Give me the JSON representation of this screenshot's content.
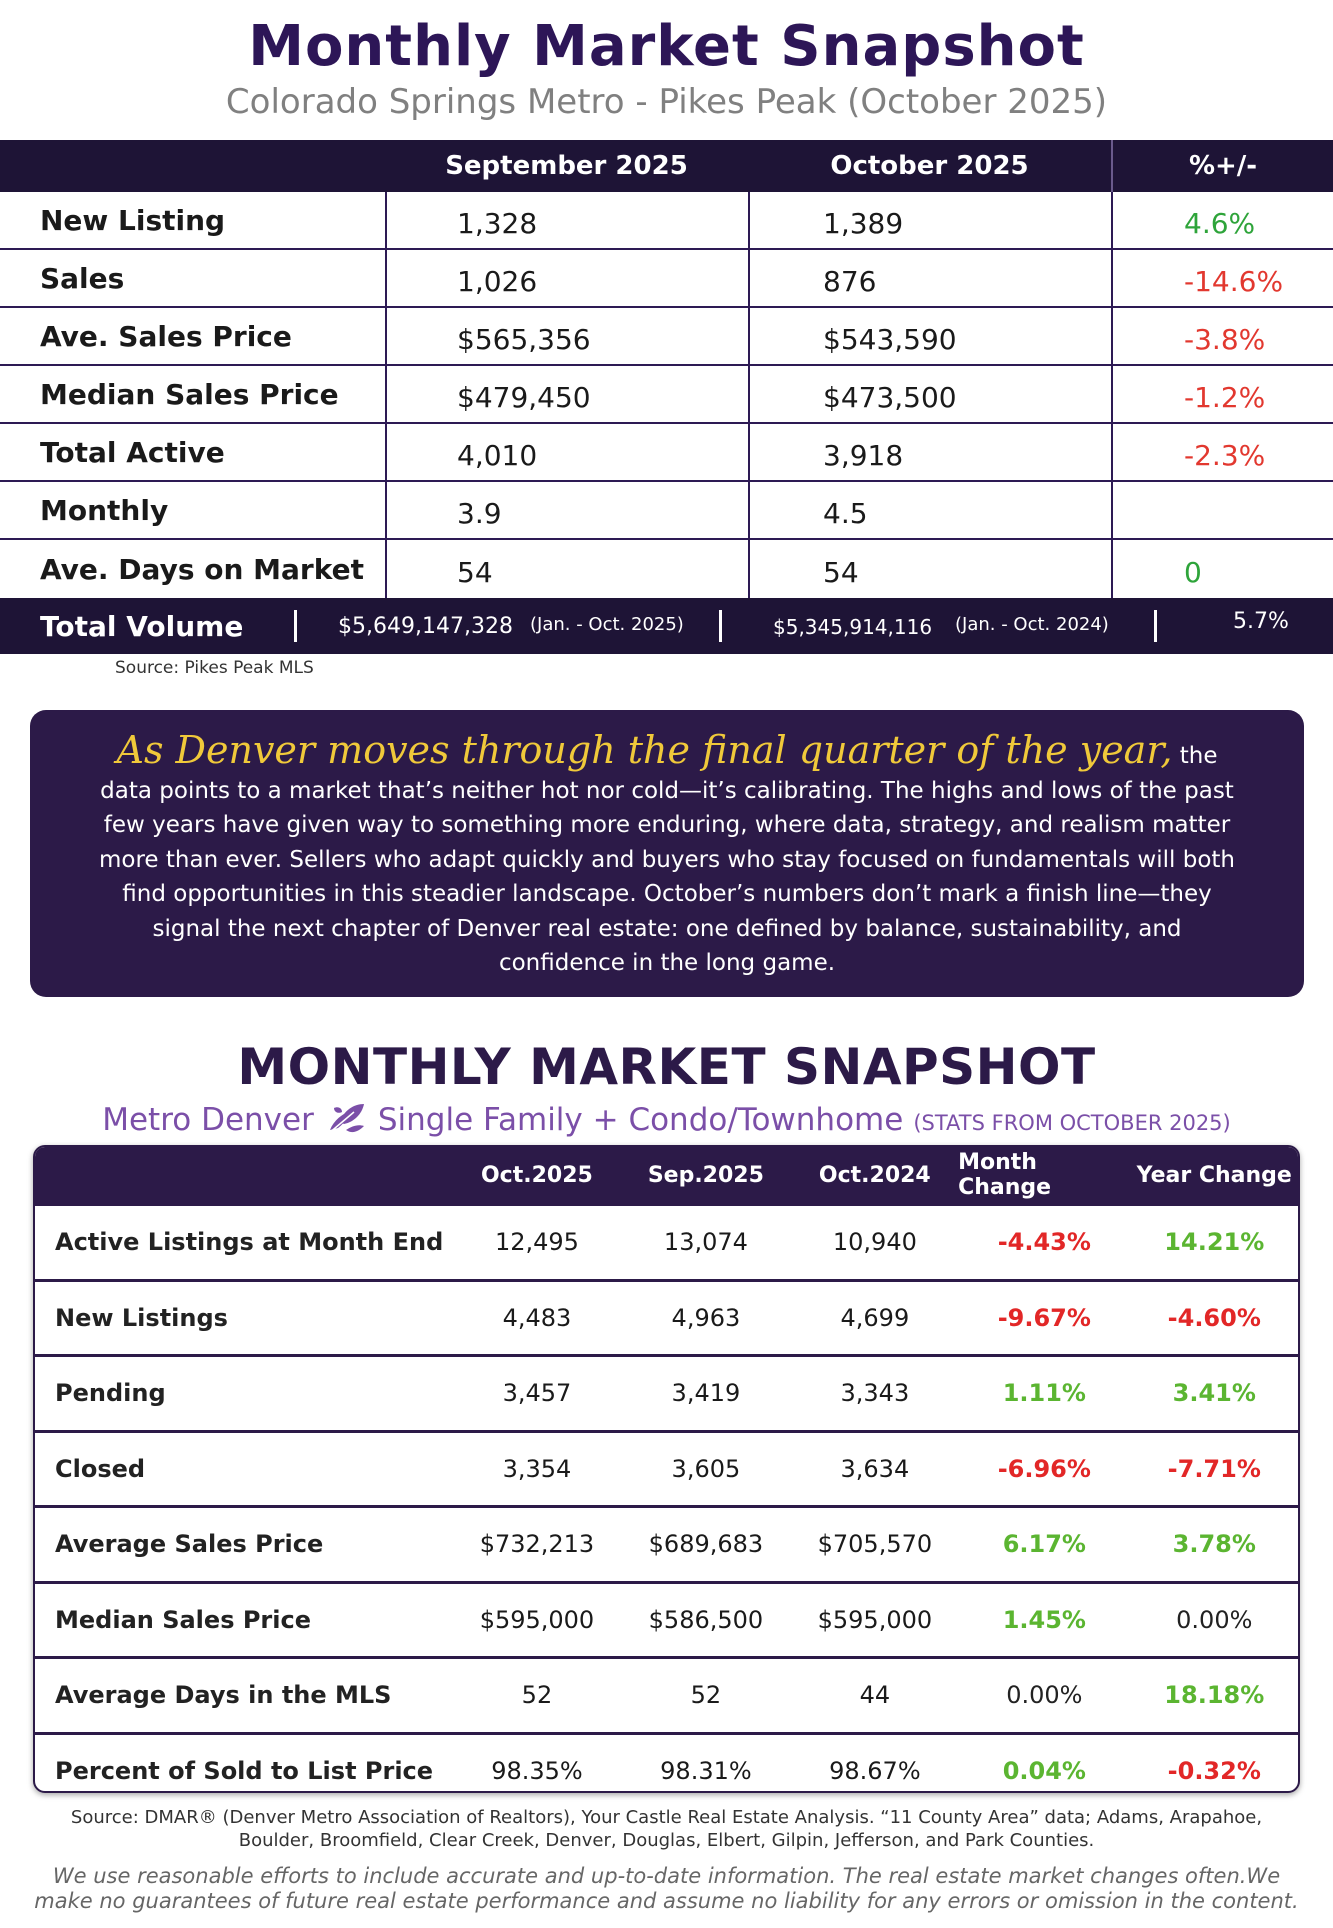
{
  "section1": {
    "title": "Monthly Market Snapshot",
    "subtitle": "Colorado Springs Metro - Pikes Peak (October 2025)",
    "columns": [
      "",
      "September 2025",
      "October 2025",
      "%+/-"
    ],
    "rows": [
      {
        "label": "New Listing",
        "sep": "1,328",
        "oct": "1,389",
        "change": "4.6%",
        "tone": "green"
      },
      {
        "label": "Sales",
        "sep": "1,026",
        "oct": "876",
        "change": "-14.6%",
        "tone": "red"
      },
      {
        "label": "Ave. Sales Price",
        "sep": "$565,356",
        "oct": "$543,590",
        "change": "-3.8%",
        "tone": "red"
      },
      {
        "label": "Median Sales Price",
        "sep": "$479,450",
        "oct": "$473,500",
        "change": "-1.2%",
        "tone": "red"
      },
      {
        "label": "Total Active",
        "sep": "4,010",
        "oct": "3,918",
        "change": "-2.3%",
        "tone": "red"
      },
      {
        "label": "Monthly",
        "sep": "3.9",
        "oct": "4.5",
        "change": "",
        "tone": "none"
      },
      {
        "label": "Ave. Days on Market",
        "sep": "54",
        "oct": "54",
        "change": "0",
        "tone": "green"
      }
    ],
    "total_volume": {
      "label": "Total Volume",
      "value_2025": "$5,649,147,328",
      "note_2025": "(Jan. - Oct. 2025)",
      "value_2024": "$5,345,914,116",
      "note_2024": "(Jan. - Oct. 2024)",
      "change": "5.7%"
    },
    "source": "Source: Pikes Peak MLS"
  },
  "story": {
    "lead": "As Denver moves through the final quarter of the year,",
    "body": "the data points to a market that’s neither hot nor cold—it’s calibrating. The highs and lows of the past few years have given way to something more enduring, where data, strategy, and realism matter more than ever. Sellers who adapt quickly and buyers who stay focused on fundamentals will both find opportunities in this steadier landscape. October’s numbers don’t mark a finish line—they signal the next chapter of Denver real estate: one defined by balance, sustainability, and confidence in the long game."
  },
  "section2": {
    "title": "MONTHLY MARKET SNAPSHOT",
    "subtitle_left": "Metro Denver",
    "subtitle_icon": "leaf-icon",
    "subtitle_right": "Single Family + Condo/Townhome",
    "subtitle_stats": "(STATS FROM OCTOBER 2025)",
    "columns": [
      "",
      "Oct.2025",
      "Sep.2025",
      "Oct.2024",
      "Month Change",
      "Year Change"
    ],
    "rows": [
      {
        "label": "Active Listings at Month End",
        "oct25": "12,495",
        "sep25": "13,074",
        "oct24": "10,940",
        "month": "-4.43%",
        "month_tone": "red",
        "year": "14.21%",
        "year_tone": "green"
      },
      {
        "label": "New Listings",
        "oct25": "4,483",
        "sep25": "4,963",
        "oct24": "4,699",
        "month": "-9.67%",
        "month_tone": "red",
        "year": "-4.60%",
        "year_tone": "red"
      },
      {
        "label": "Pending",
        "oct25": "3,457",
        "sep25": "3,419",
        "oct24": "3,343",
        "month": "1.11%",
        "month_tone": "green",
        "year": "3.41%",
        "year_tone": "green"
      },
      {
        "label": "Closed",
        "oct25": "3,354",
        "sep25": "3,605",
        "oct24": "3,634",
        "month": "-6.96%",
        "month_tone": "red",
        "year": "-7.71%",
        "year_tone": "red"
      },
      {
        "label": "Average Sales Price",
        "oct25": "$732,213",
        "sep25": "$689,683",
        "oct24": "$705,570",
        "month": "6.17%",
        "month_tone": "green",
        "year": "3.78%",
        "year_tone": "green"
      },
      {
        "label": "Median Sales Price",
        "oct25": "$595,000",
        "sep25": "$586,500",
        "oct24": "$595,000",
        "month": "1.45%",
        "month_tone": "green",
        "year": "0.00%",
        "year_tone": "neutral"
      },
      {
        "label": "Average Days in the MLS",
        "oct25": "52",
        "sep25": "52",
        "oct24": "44",
        "month": "0.00%",
        "month_tone": "neutral",
        "year": "18.18%",
        "year_tone": "green"
      },
      {
        "label": "Percent of Sold to List Price",
        "oct25": "98.35%",
        "sep25": "98.31%",
        "oct24": "98.67%",
        "month": "0.04%",
        "month_tone": "green",
        "year": "-0.32%",
        "year_tone": "red"
      }
    ],
    "source": "Source: DMAR® (Denver Metro Association of Realtors), Your Castle Real Estate Analysis. “11 County Area” data; Adams, Arapahoe, Boulder, Broomfield, Clear Creek, Denver, Douglas, Elbert, Gilpin, Jefferson, and Park Counties.",
    "disclaimer": "We use reasonable efforts to include accurate and up-to-date information. The real estate market changes often.We make no guarantees of future real estate performance and assume no liability for any errors or omission in the content."
  },
  "colors": {
    "navy": "#1e1436",
    "purple": "#2c1a48",
    "title_purple": "#2d1657",
    "subtitle_violet": "#7b4fa8",
    "gold": "#f0c93a",
    "green": "#2ea43a",
    "red": "#e2382f"
  }
}
